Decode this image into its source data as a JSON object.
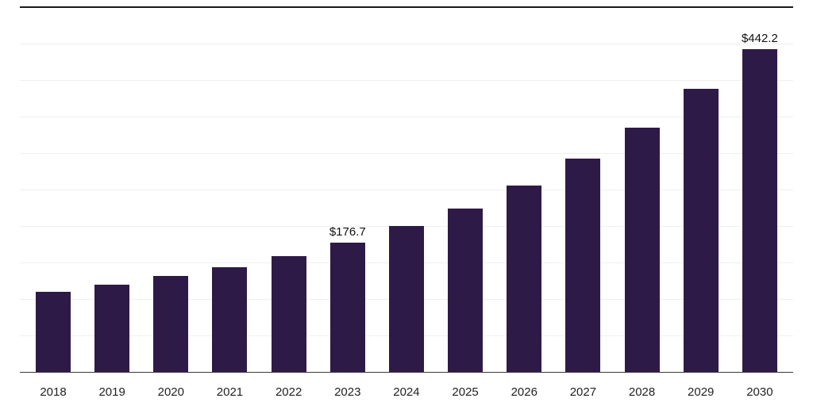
{
  "chart_data": {
    "type": "bar",
    "title": "",
    "xlabel": "",
    "ylabel": "",
    "categories": [
      "2018",
      "2019",
      "2020",
      "2021",
      "2022",
      "2023",
      "2024",
      "2025",
      "2026",
      "2027",
      "2028",
      "2029",
      "2030"
    ],
    "values": [
      110,
      120,
      131,
      143,
      159,
      176.7,
      200,
      224,
      255,
      292,
      335,
      388,
      442.2
    ],
    "data_labels": [
      "",
      "",
      "",
      "",
      "",
      "$176.7",
      "",
      "",
      "",
      "",
      "",
      "",
      "$442.2"
    ],
    "ylim": [
      0,
      500
    ],
    "gridline_step": 50,
    "grid": true,
    "legend": false,
    "bar_color": "#2e1a47",
    "gridline_color": "#efefef",
    "top_line_color": "#1a1a1a",
    "axis_line_color": "#3a3a3a",
    "label_color": "#222222"
  }
}
